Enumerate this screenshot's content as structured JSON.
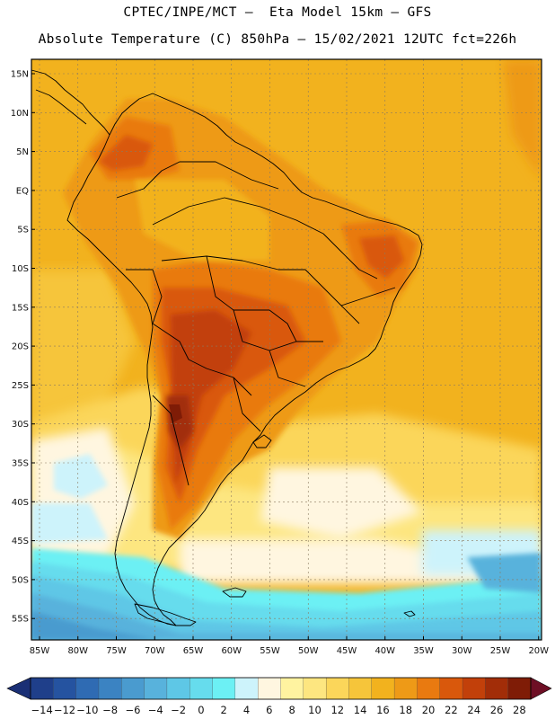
{
  "header": {
    "line1": "CPTEC/INPE/MCT –  Eta Model 15km – GFS",
    "line2": "Absolute Temperature (C) 850hPa – 15/02/2021 12UTC fct=226h"
  },
  "map": {
    "region": "South America",
    "lat_ticks": [
      "15N",
      "10N",
      "5N",
      "EQ",
      "5S",
      "10S",
      "15S",
      "20S",
      "25S",
      "30S",
      "35S",
      "40S",
      "45S",
      "50S",
      "55S"
    ],
    "lon_ticks": [
      "85W",
      "80W",
      "75W",
      "70W",
      "65W",
      "60W",
      "55W",
      "50W",
      "45W",
      "40W",
      "35W",
      "30W",
      "25W",
      "20W"
    ]
  },
  "colorbar": {
    "labels": [
      "-14",
      "-12",
      "-10",
      "-8",
      "-6",
      "-4",
      "-2",
      "0",
      "2",
      "4",
      "6",
      "8",
      "10",
      "12",
      "14",
      "16",
      "18",
      "20",
      "22",
      "24",
      "26",
      "28"
    ],
    "colors": [
      "#1f3f8a",
      "#2553a0",
      "#2f6bb3",
      "#3b83c2",
      "#4a9bcf",
      "#58b2dc",
      "#5ec7e6",
      "#66dced",
      "#6cf0f4",
      "#cdf3fb",
      "#fff6e0",
      "#fff3a0",
      "#fde680",
      "#fbd65a",
      "#f6c53a",
      "#f2b21e",
      "#ee9a17",
      "#e97a10",
      "#d9580c",
      "#c2400a",
      "#a22d08",
      "#7f1c06"
    ],
    "left_arrow_color": "#1a2f75",
    "right_arrow_color": "#6e0f25"
  }
}
